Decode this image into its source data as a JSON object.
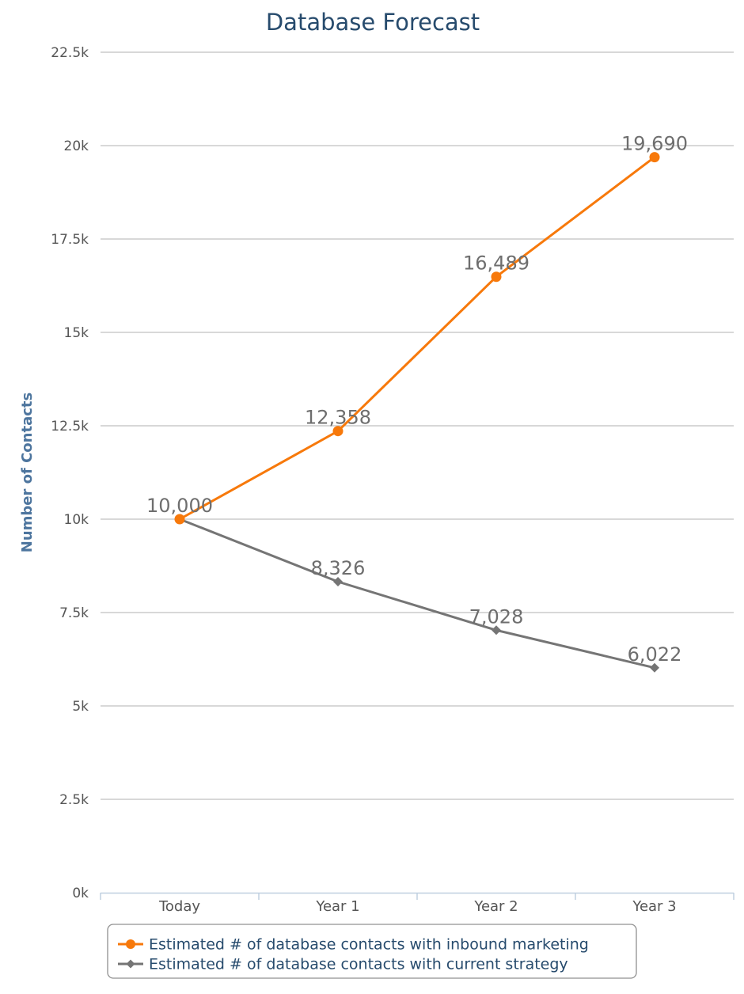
{
  "chart_data": {
    "type": "line",
    "title": "Database Forecast",
    "xlabel": "",
    "ylabel": "Number of Contacts",
    "categories": [
      "Today",
      "Year 1",
      "Year 2",
      "Year 3"
    ],
    "ylim": [
      0,
      22500
    ],
    "ytick_labels": [
      "0k",
      "2.5k",
      "5k",
      "7.5k",
      "10k",
      "12.5k",
      "15k",
      "17.5k",
      "20k",
      "22.5k"
    ],
    "grid": true,
    "legend_position": "bottom-center",
    "series": [
      {
        "name": "Estimated # of database contacts with inbound marketing",
        "values": [
          10000,
          12358,
          16489,
          19690
        ],
        "data_labels": [
          "10,000",
          "12,358",
          "16,489",
          "19,690"
        ],
        "color": "#f7790b",
        "marker": "circle"
      },
      {
        "name": "Estimated # of database contacts with current strategy",
        "values": [
          10000,
          8326,
          7028,
          6022
        ],
        "data_labels": [
          "",
          "8,326",
          "7,028",
          "6,022"
        ],
        "color": "#757575",
        "marker": "diamond"
      }
    ]
  }
}
